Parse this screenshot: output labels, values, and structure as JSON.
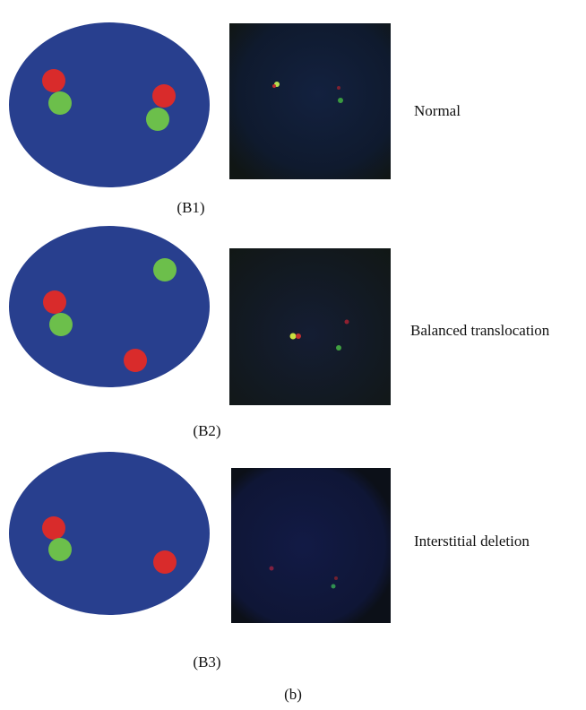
{
  "panels": [
    {
      "label": "(B1)",
      "caption": "Normal"
    },
    {
      "label": "(B2)",
      "caption": "Balanced translocation"
    },
    {
      "label": "(B3)",
      "caption": "Interstitial deletion"
    }
  ],
  "figure_label": "(b)"
}
